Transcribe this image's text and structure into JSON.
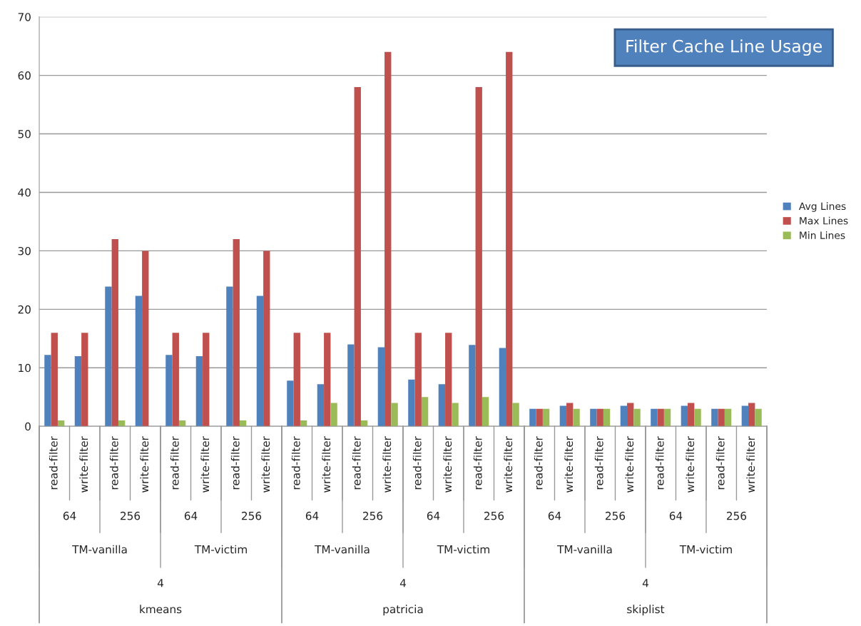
{
  "chart_data": {
    "type": "bar",
    "title": "Filter Cache Line Usage",
    "categories": [
      "read-filter",
      "write-filter",
      "read-filter",
      "write-filter",
      "read-filter",
      "write-filter",
      "read-filter",
      "write-filter",
      "read-filter",
      "write-filter",
      "read-filter",
      "write-filter",
      "read-filter",
      "write-filter",
      "read-filter",
      "write-filter",
      "read-filter",
      "write-filter",
      "read-filter",
      "write-filter",
      "read-filter",
      "write-filter",
      "read-filter",
      "write-filter"
    ],
    "series": [
      {
        "name": "Avg Lines",
        "color": "#4f81bd",
        "values": [
          12.2,
          12,
          23.9,
          22.3,
          12.2,
          12,
          23.9,
          22.3,
          7.8,
          7.2,
          14,
          13.5,
          8,
          7.2,
          13.9,
          13.4,
          3,
          3.5,
          3,
          3.5,
          3,
          3.5,
          3,
          3.5
        ]
      },
      {
        "name": "Max Lines",
        "color": "#c0504d",
        "values": [
          16,
          16,
          32,
          30,
          16,
          16,
          32,
          30,
          16,
          16,
          58,
          64,
          16,
          16,
          58,
          64,
          3,
          4,
          3,
          4,
          3,
          4,
          3,
          4
        ]
      },
      {
        "name": "Min Lines",
        "color": "#9bbb59",
        "values": [
          1,
          0,
          1,
          0,
          1,
          0,
          1,
          0,
          1,
          4,
          1,
          4,
          5,
          4,
          5,
          4,
          3,
          3,
          3,
          3,
          3,
          3,
          3,
          3
        ]
      }
    ],
    "annotations": [
      "64",
      "256",
      "64",
      "256",
      "64",
      "256",
      "64",
      "256",
      "64",
      "256",
      "64",
      "256",
      "TM-vanilla",
      "TM-victim",
      "TM-vanilla",
      "TM-victim",
      "TM-vanilla",
      "TM-victim",
      "4",
      "4",
      "4",
      "kmeans",
      "patricia",
      "skiplist"
    ],
    "ylim": [
      0,
      70
    ],
    "yticks": [
      0,
      10,
      20,
      30,
      40,
      50,
      60,
      70
    ],
    "grid": "y",
    "legend": "right"
  }
}
